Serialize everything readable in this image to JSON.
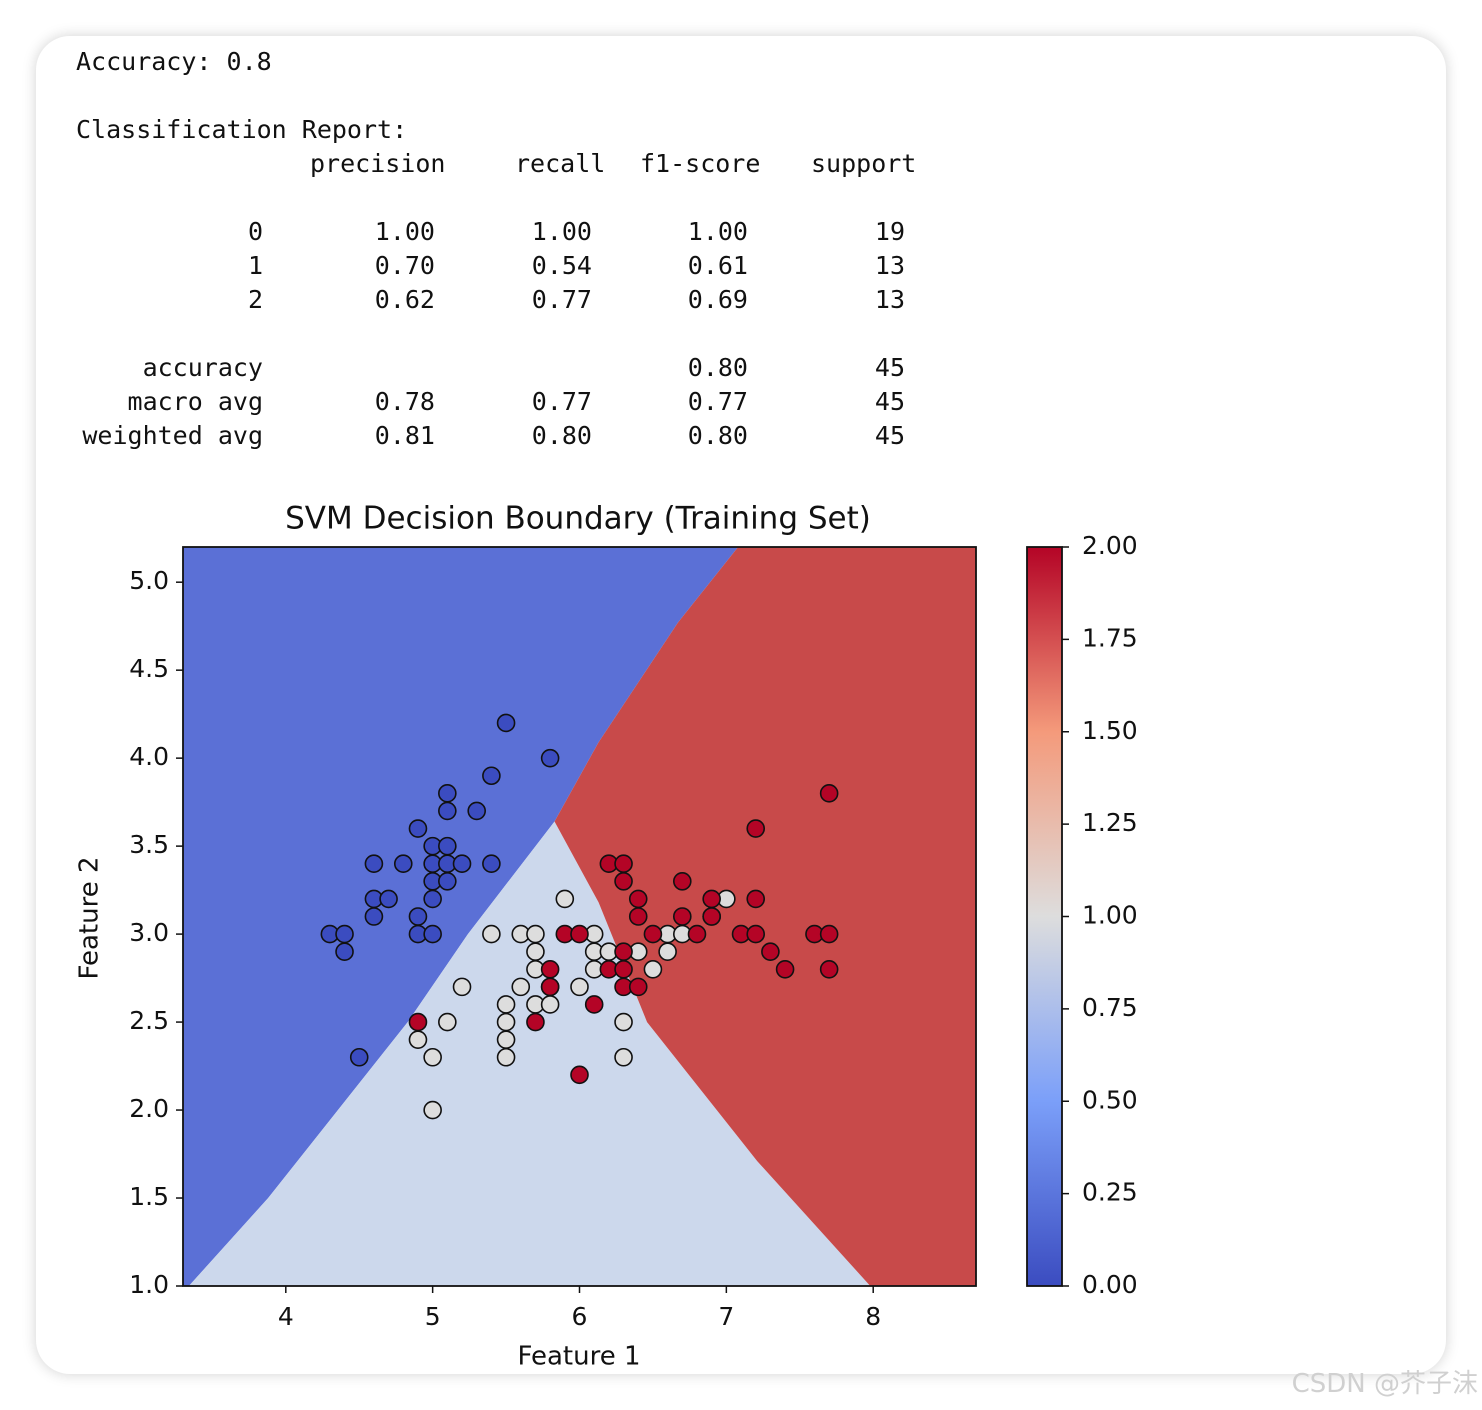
{
  "report": {
    "accuracy_line": "Accuracy: 0.8",
    "heading": "Classification Report:",
    "columns": [
      "precision",
      "recall",
      "f1-score",
      "support"
    ],
    "rows": [
      [
        "0",
        "1.00",
        "1.00",
        "1.00",
        "19"
      ],
      [
        "1",
        "0.70",
        "0.54",
        "0.61",
        "13"
      ],
      [
        "2",
        "0.62",
        "0.77",
        "0.69",
        "13"
      ],
      [
        "accuracy",
        null,
        null,
        "0.80",
        "45"
      ],
      [
        "macro avg",
        "0.78",
        "0.77",
        "0.77",
        "45"
      ],
      [
        "weighted avg",
        "0.81",
        "0.80",
        "0.80",
        "45"
      ]
    ]
  },
  "chart_data": {
    "type": "scatter",
    "title": "SVM Decision Boundary (Training Set)",
    "x_label": "Feature 1",
    "y_label": "Feature 2",
    "xlim": [
      3.3,
      8.7
    ],
    "ylim": [
      1.0,
      5.2
    ],
    "xticks": [
      4,
      5,
      6,
      7,
      8
    ],
    "yticks": [
      {
        "value": 1.0,
        "label": "1.0"
      },
      1.5,
      {
        "value": 2.0,
        "label": "2.0"
      },
      2.5,
      {
        "value": 3.0,
        "label": "3.0"
      },
      3.5,
      {
        "value": 4.0,
        "label": "4.0"
      },
      4.5,
      {
        "value": 5.0,
        "label": "5.0"
      }
    ],
    "regions": [
      {
        "value": 0,
        "color": "#5b70d6",
        "points": [
          [
            3.3,
            1.0
          ],
          [
            3.34,
            1.0
          ],
          [
            3.88,
            1.5
          ],
          [
            4.83,
            2.5
          ],
          [
            5.24,
            3.0
          ],
          [
            5.83,
            3.64
          ],
          [
            6.13,
            4.09
          ],
          [
            6.67,
            4.77
          ],
          [
            7.08,
            5.2
          ],
          [
            3.3,
            5.2
          ]
        ]
      },
      {
        "value": 1,
        "color": "#ccd8ec",
        "points": [
          [
            3.34,
            1.0
          ],
          [
            7.98,
            1.0
          ],
          [
            7.21,
            1.71
          ],
          [
            6.46,
            2.5
          ],
          [
            6.13,
            3.18
          ],
          [
            5.83,
            3.64
          ],
          [
            5.24,
            3.0
          ],
          [
            4.83,
            2.5
          ],
          [
            3.88,
            1.5
          ]
        ]
      },
      {
        "value": 2,
        "color": "#c84a4a",
        "points": [
          [
            7.08,
            5.2
          ],
          [
            8.7,
            5.2
          ],
          [
            8.7,
            1.0
          ],
          [
            7.98,
            1.0
          ],
          [
            7.21,
            1.71
          ],
          [
            6.46,
            2.5
          ],
          [
            6.13,
            3.18
          ],
          [
            5.83,
            3.64
          ],
          [
            6.13,
            4.09
          ],
          [
            6.67,
            4.77
          ]
        ]
      }
    ],
    "series": [
      {
        "color": "#3b4cc0",
        "value": 0,
        "x": [
          5.5,
          5.8,
          5.4,
          5.1,
          5.1,
          5.3,
          4.9,
          5.0,
          5.1,
          4.6,
          4.8,
          5.0,
          5.1,
          5.2,
          5.4,
          5.0,
          5.1,
          4.6,
          4.7,
          5.0,
          4.6,
          4.9,
          4.3,
          4.4,
          4.9,
          5.0,
          4.4,
          4.5
        ],
        "y": [
          4.2,
          4.0,
          3.9,
          3.8,
          3.7,
          3.7,
          3.6,
          3.5,
          3.5,
          3.4,
          3.4,
          3.4,
          3.4,
          3.4,
          3.4,
          3.3,
          3.3,
          3.2,
          3.2,
          3.2,
          3.1,
          3.1,
          3.0,
          3.0,
          3.0,
          3.0,
          2.9,
          2.3
        ]
      },
      {
        "color": "#dddddd",
        "value": 1,
        "x": [
          5.9,
          5.4,
          5.6,
          5.7,
          6.1,
          5.7,
          6.1,
          6.2,
          6.4,
          5.7,
          6.1,
          6.5,
          5.2,
          5.6,
          5.8,
          6.0,
          5.5,
          5.7,
          5.8,
          4.9,
          5.0,
          5.5,
          5.5,
          5.5,
          6.3,
          6.3,
          5.0,
          5.1,
          6.6,
          6.6,
          6.7,
          6.9,
          7.0
        ],
        "y": [
          3.2,
          3.0,
          3.0,
          3.0,
          3.0,
          2.9,
          2.9,
          2.9,
          2.9,
          2.8,
          2.8,
          2.8,
          2.7,
          2.7,
          2.7,
          2.7,
          2.6,
          2.6,
          2.6,
          2.4,
          2.3,
          2.5,
          2.4,
          2.3,
          2.5,
          2.3,
          2.0,
          2.5,
          2.9,
          3.0,
          3.0,
          3.1,
          3.2
        ]
      },
      {
        "color": "#b40426",
        "value": 2,
        "x": [
          7.7,
          7.2,
          6.2,
          6.3,
          6.3,
          6.7,
          6.4,
          6.9,
          7.2,
          6.4,
          6.7,
          6.9,
          5.9,
          6.0,
          6.5,
          6.8,
          7.1,
          7.2,
          7.6,
          7.7,
          6.3,
          7.3,
          5.8,
          6.2,
          6.3,
          7.4,
          7.7,
          5.8,
          6.3,
          6.4,
          6.1,
          5.7,
          4.9,
          6.0
        ],
        "y": [
          3.8,
          3.6,
          3.4,
          3.4,
          3.3,
          3.3,
          3.2,
          3.2,
          3.2,
          3.1,
          3.1,
          3.1,
          3.0,
          3.0,
          3.0,
          3.0,
          3.0,
          3.0,
          3.0,
          3.0,
          2.9,
          2.9,
          2.8,
          2.8,
          2.8,
          2.8,
          2.8,
          2.7,
          2.7,
          2.7,
          2.6,
          2.5,
          2.5,
          2.2
        ]
      }
    ],
    "colorbar": {
      "lim": [
        0,
        2
      ],
      "colors": [
        "#3b4cc0",
        "#7b9ff9",
        "#dddddd",
        "#f49a7b",
        "#b40426"
      ],
      "ticks": [
        {
          "value": 0,
          "label": "0.00"
        },
        {
          "value": 0.25,
          "label": "0.25"
        },
        {
          "value": 0.5,
          "label": "0.50"
        },
        {
          "value": 0.75,
          "label": "0.75"
        },
        {
          "value": 1,
          "label": "1.00"
        },
        {
          "value": 1.25,
          "label": "1.25"
        },
        {
          "value": 1.5,
          "label": "1.50"
        },
        {
          "value": 1.75,
          "label": "1.75"
        },
        {
          "value": 2,
          "label": "2.00"
        }
      ]
    }
  },
  "watermark": "CSDN @芥子沫"
}
